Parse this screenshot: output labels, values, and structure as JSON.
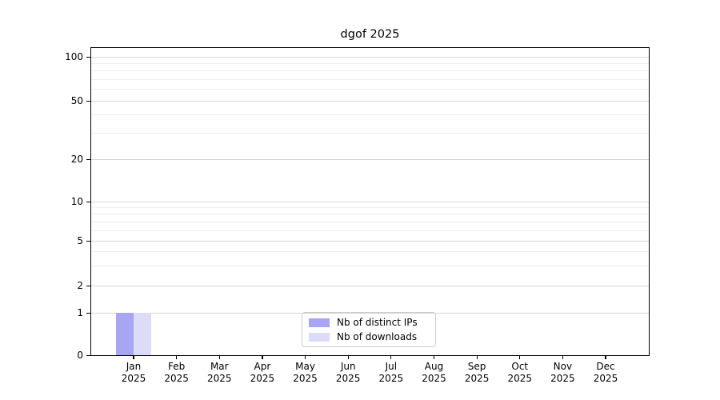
{
  "chart_data": {
    "type": "bar",
    "title": "dgof 2025",
    "categories": [
      "Jan 2025",
      "Feb 2025",
      "Mar 2025",
      "Apr 2025",
      "May 2025",
      "Jun 2025",
      "Jul 2025",
      "Aug 2025",
      "Sep 2025",
      "Oct 2025",
      "Nov 2025",
      "Dec 2025"
    ],
    "series": [
      {
        "name": "Nb of distinct IPs",
        "color": "#a6a6f2",
        "values": [
          1,
          0,
          0,
          0,
          0,
          0,
          0,
          0,
          0,
          0,
          0,
          0
        ]
      },
      {
        "name": "Nb of downloads",
        "color": "#dcdcf8",
        "values": [
          1,
          0,
          0,
          0,
          0,
          0,
          0,
          0,
          0,
          0,
          0,
          0
        ]
      }
    ],
    "yaxis": {
      "ticks": [
        100,
        50,
        20,
        10,
        5,
        2,
        1,
        0
      ],
      "minor_gridlines": [
        3,
        4,
        6,
        7,
        8,
        9,
        30,
        40,
        60,
        70,
        80,
        90
      ],
      "scale": "log above 1, linear between 0 and 1",
      "range": [
        0,
        110
      ],
      "grid": true
    },
    "xaxis": {
      "label_year_line": "2025"
    },
    "legend": {
      "position": "inside-bottom-center"
    },
    "colors": {
      "background": "#ffffff",
      "grid_major": "#d4d4d4",
      "grid_minor": "#efefef",
      "axis": "#000000"
    }
  }
}
